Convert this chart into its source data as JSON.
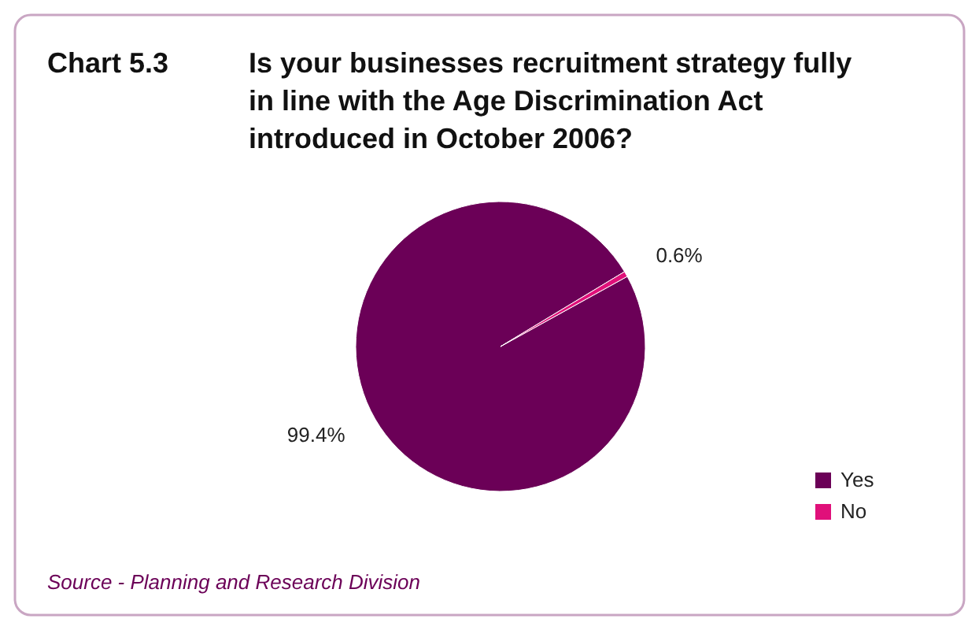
{
  "chart_data": {
    "type": "pie",
    "title": "Chart 5.3",
    "subtitle": "Is your businesses recruitment strategy fully in line with the Age Discrimination Act introduced in October 2006?",
    "categories": [
      "Yes",
      "No"
    ],
    "values": [
      99.4,
      0.6
    ],
    "colors": [
      "#6b0057",
      "#e0107a"
    ],
    "value_labels": [
      "99.4%",
      "0.6%"
    ],
    "legend": "bottom right",
    "annotations": [
      "Source - Planning and Research Division"
    ]
  }
}
